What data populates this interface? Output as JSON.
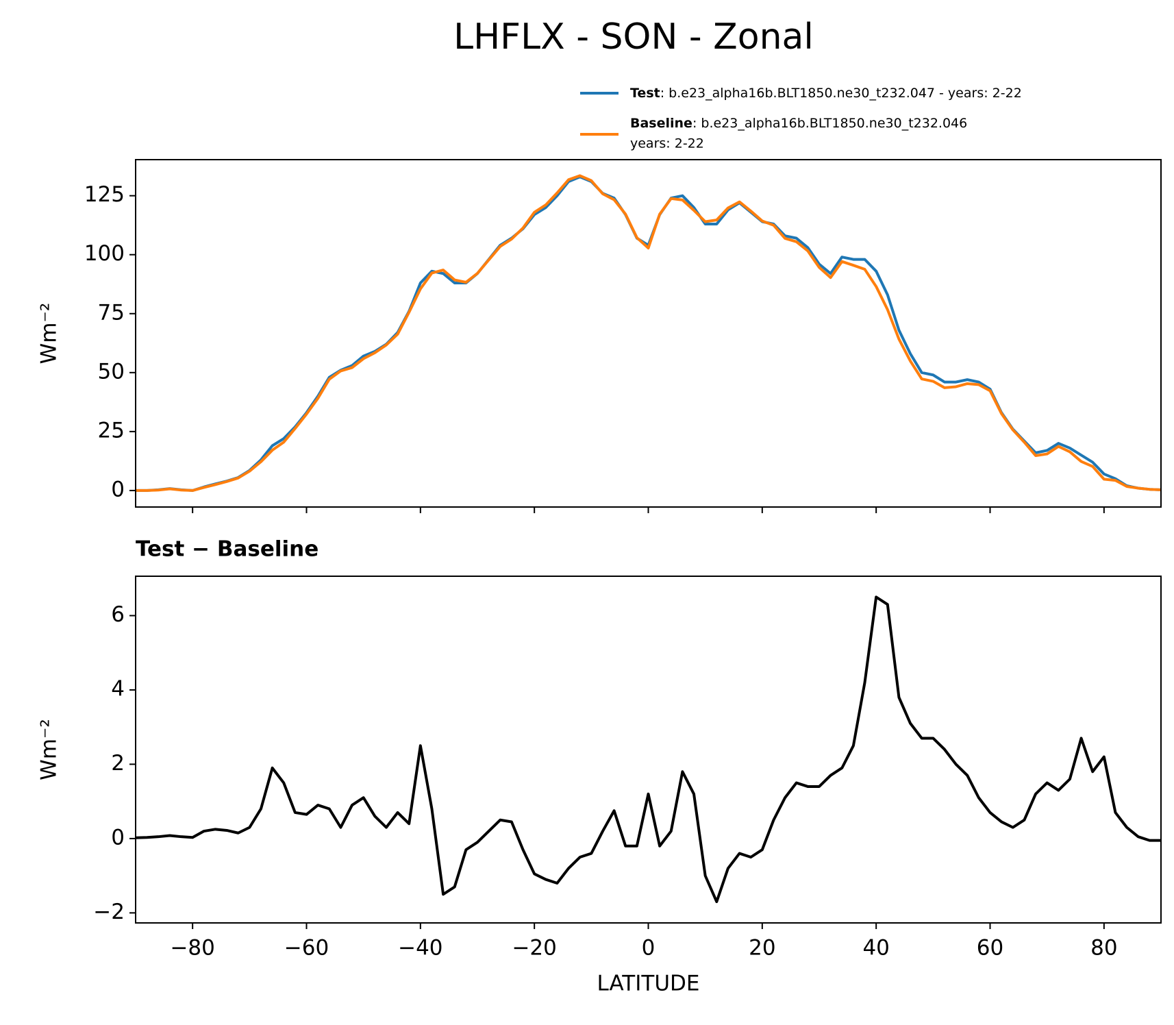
{
  "title": "LHFLX - SON - Zonal",
  "chart_data": [
    {
      "type": "line",
      "ylabel": "Wm⁻²",
      "x": [
        -90,
        -88,
        -86,
        -84,
        -82,
        -80,
        -78,
        -76,
        -74,
        -72,
        -70,
        -68,
        -66,
        -64,
        -62,
        -60,
        -58,
        -56,
        -54,
        -52,
        -50,
        -48,
        -46,
        -44,
        -42,
        -40,
        -38,
        -36,
        -34,
        -32,
        -30,
        -28,
        -26,
        -24,
        -22,
        -20,
        -18,
        -16,
        -14,
        -12,
        -10,
        -8,
        -6,
        -4,
        -2,
        0,
        2,
        4,
        6,
        8,
        10,
        12,
        14,
        16,
        18,
        20,
        22,
        24,
        26,
        28,
        30,
        32,
        34,
        36,
        38,
        40,
        42,
        44,
        46,
        48,
        50,
        52,
        54,
        56,
        58,
        60,
        62,
        64,
        66,
        68,
        70,
        72,
        74,
        76,
        78,
        80,
        82,
        84,
        86,
        88,
        90
      ],
      "series": [
        {
          "name": "Test",
          "legend_text": [
            ": b.e23_alpha16b.BLT1850.ne30_t232.047 - years: 2-22"
          ],
          "color": "#1f77b4",
          "values": [
            0,
            0,
            0.3,
            0.8,
            0.3,
            0,
            1.5,
            2.8,
            4,
            5.5,
            8.5,
            13,
            19,
            22,
            27,
            33,
            40,
            48,
            51,
            53,
            57,
            59,
            62,
            67,
            76,
            88,
            93,
            92,
            88,
            88,
            92,
            98,
            104,
            107,
            111,
            117,
            120,
            125,
            131,
            133,
            131,
            126,
            124,
            117,
            107,
            104,
            117,
            124,
            125,
            120,
            113,
            113,
            119,
            122,
            118,
            114,
            113,
            108,
            107,
            103,
            96,
            92,
            99,
            98,
            98,
            93,
            83,
            68,
            58,
            50,
            49,
            46,
            46,
            47,
            46,
            43,
            33,
            26,
            21,
            16,
            17,
            20,
            18,
            15,
            12,
            7,
            5,
            2,
            1,
            0.5,
            0.3
          ]
        },
        {
          "name": "Baseline",
          "legend_text": [
            ": b.e23_alpha16b.BLT1850.ne30_t232.046",
            "years: 2-22"
          ],
          "color": "#ff7f0e",
          "values": [
            0,
            0,
            0.2,
            0.7,
            0.2,
            0,
            1.3,
            2.5,
            3.8,
            5.3,
            8.2,
            12.2,
            17.1,
            20.5,
            26.3,
            32.4,
            39.1,
            47.2,
            50.7,
            52.1,
            55.9,
            58.4,
            61.7,
            66.3,
            75.6,
            85.5,
            92.2,
            93.5,
            89.3,
            88.3,
            92.1,
            97.8,
            103.5,
            106.6,
            111.3,
            118,
            121.1,
            126.2,
            131.8,
            133.5,
            131.4,
            125.8,
            123.3,
            117.2,
            107.2,
            102.8,
            117.2,
            123.8,
            123.2,
            118.8,
            114,
            114.7,
            119.8,
            122.4,
            118.5,
            114.3,
            112.5,
            106.9,
            105.5,
            101.6,
            94.6,
            90.3,
            97.1,
            95.5,
            93.8,
            86.5,
            76.7,
            64.2,
            54.9,
            47.3,
            46.3,
            43.6,
            44,
            45.3,
            44.9,
            42.3,
            32.6,
            25.7,
            20.5,
            14.8,
            15.5,
            18.7,
            16.4,
            12.3,
            10.2,
            4.8,
            4.3,
            1.7,
            1,
            0.5,
            0.3
          ]
        }
      ],
      "xlim": [
        -90,
        90
      ],
      "xticks": [
        -80,
        -60,
        -40,
        -20,
        0,
        20,
        40,
        60,
        80
      ],
      "xtick_labels": false,
      "ylim": [
        -7,
        140.3
      ],
      "yticks": [
        0,
        25,
        50,
        75,
        100,
        125
      ]
    },
    {
      "type": "line",
      "title": "Test − Baseline",
      "xlabel": "LATITUDE",
      "ylabel": "Wm⁻²",
      "x": [
        -90,
        -88,
        -86,
        -84,
        -82,
        -80,
        -78,
        -76,
        -74,
        -72,
        -70,
        -68,
        -66,
        -64,
        -62,
        -60,
        -58,
        -56,
        -54,
        -52,
        -50,
        -48,
        -46,
        -44,
        -42,
        -40,
        -38,
        -36,
        -34,
        -32,
        -30,
        -28,
        -26,
        -24,
        -22,
        -20,
        -18,
        -16,
        -14,
        -12,
        -10,
        -8,
        -6,
        -4,
        -2,
        0,
        2,
        4,
        6,
        8,
        10,
        12,
        14,
        16,
        18,
        20,
        22,
        24,
        26,
        28,
        30,
        32,
        34,
        36,
        38,
        40,
        42,
        44,
        46,
        48,
        50,
        52,
        54,
        56,
        58,
        60,
        62,
        64,
        66,
        68,
        70,
        72,
        74,
        76,
        78,
        80,
        82,
        84,
        86,
        88,
        90
      ],
      "series": [
        {
          "color": "#000000",
          "values": [
            0.02,
            0.03,
            0.05,
            0.08,
            0.05,
            0.03,
            0.2,
            0.25,
            0.22,
            0.15,
            0.3,
            0.8,
            1.9,
            1.5,
            0.7,
            0.65,
            0.9,
            0.8,
            0.3,
            0.9,
            1.1,
            0.6,
            0.3,
            0.7,
            0.4,
            2.5,
            0.8,
            -1.5,
            -1.3,
            -0.3,
            -0.1,
            0.2,
            0.5,
            0.45,
            -0.3,
            -0.95,
            -1.1,
            -1.2,
            -0.8,
            -0.5,
            -0.4,
            0.2,
            0.75,
            -0.2,
            -0.2,
            1.2,
            -0.2,
            0.2,
            1.8,
            1.2,
            -1.0,
            -1.7,
            -0.8,
            -0.4,
            -0.5,
            -0.3,
            0.5,
            1.1,
            1.5,
            1.4,
            1.4,
            1.7,
            1.9,
            2.5,
            4.2,
            6.5,
            6.3,
            3.8,
            3.1,
            2.7,
            2.7,
            2.4,
            2.0,
            1.7,
            1.1,
            0.7,
            0.45,
            0.3,
            0.5,
            1.2,
            1.5,
            1.3,
            1.6,
            2.7,
            1.8,
            2.2,
            0.7,
            0.3,
            0.05,
            -0.05,
            -0.05
          ]
        }
      ],
      "xlim": [
        -90,
        90
      ],
      "xticks": [
        {
          "value": -80,
          "label": "−80"
        },
        {
          "value": -60,
          "label": "−60"
        },
        {
          "value": -40,
          "label": "−40"
        },
        {
          "value": -20,
          "label": "−20"
        },
        0,
        20,
        40,
        60,
        80
      ],
      "xtick_labels": true,
      "ylim": [
        -2.27,
        7.06
      ],
      "yticks": [
        {
          "value": -2,
          "label": "−2"
        },
        0,
        2,
        4,
        6
      ]
    }
  ]
}
